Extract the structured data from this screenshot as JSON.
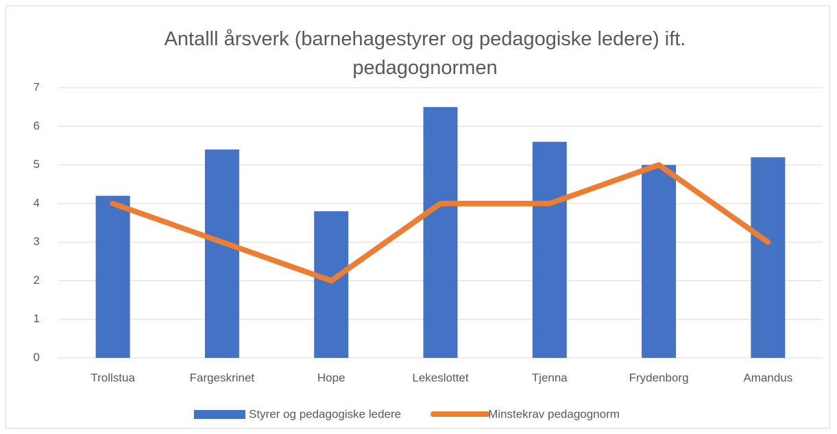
{
  "chart_data": {
    "type": "combo",
    "title": "Antalll årsverk (barnehagestyrer og pedagogiske ledere) ift. pedagognormen",
    "categories": [
      "Trollstua",
      "Fargeskrinet",
      "Hope",
      "Lekeslottet",
      "Tjenna",
      "Frydenborg",
      "Amandus"
    ],
    "series": [
      {
        "name": "Styrer og pedagogiske ledere",
        "type": "bar",
        "color": "#4472c4",
        "values": [
          4.2,
          5.4,
          3.8,
          6.5,
          5.6,
          5.0,
          5.2
        ]
      },
      {
        "name": "Minstekrav pedagognorm",
        "type": "line",
        "color": "#ed7d31",
        "values": [
          4,
          3,
          2,
          4,
          4,
          5,
          3
        ]
      }
    ],
    "ylim": [
      0,
      7
    ],
    "yticks": [
      0,
      1,
      2,
      3,
      4,
      5,
      6,
      7
    ],
    "grid": true,
    "legend": "bottom"
  }
}
